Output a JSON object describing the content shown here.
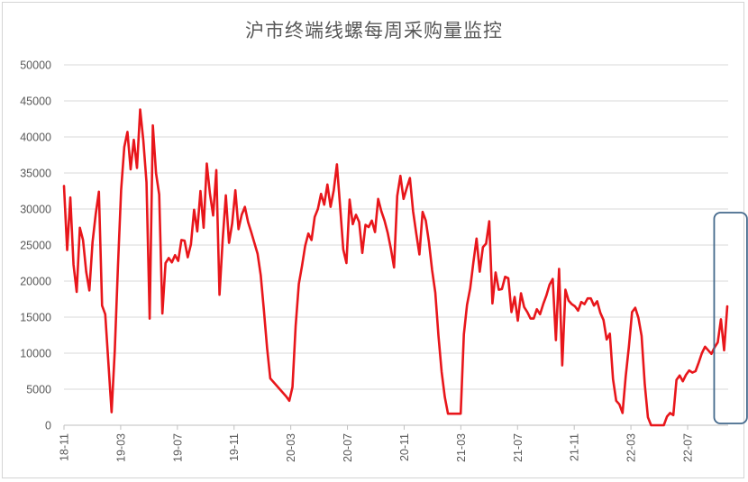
{
  "chart_data": {
    "type": "line",
    "title": "沪市终端线螺每周采购量监控",
    "xlabel": "",
    "ylabel": "",
    "ylim": [
      0,
      50000
    ],
    "yticks": [
      0,
      5000,
      10000,
      15000,
      20000,
      25000,
      30000,
      35000,
      40000,
      45000,
      50000
    ],
    "xticks": [
      "18-11",
      "19-03",
      "19-07",
      "19-11",
      "20-03",
      "20-07",
      "20-11",
      "21-03",
      "21-07",
      "21-11",
      "22-03",
      "22-07"
    ],
    "x_period": "weekly",
    "grid": true,
    "legend": "none",
    "colors": {
      "series": "#e8161b",
      "grid": "#d9d9d9",
      "highlight": "#44698c"
    },
    "highlight_box": {
      "x_range": [
        "22-09",
        "22-11"
      ],
      "y_range": [
        0,
        29500
      ]
    },
    "series": [
      {
        "values": [
          33200,
          24300,
          31600,
          22300,
          18500,
          27400,
          25700,
          21300,
          18700,
          25400,
          29300,
          32400,
          16600,
          15400,
          8600,
          1800,
          10300,
          22000,
          32600,
          38600,
          40700,
          35500,
          39600,
          35700,
          43800,
          39500,
          33700,
          14800,
          41600,
          35000,
          32000,
          15500,
          22500,
          23200,
          22600,
          23600,
          22800,
          25700,
          25600,
          23300,
          25100,
          29900,
          26900,
          32500,
          27400,
          36300,
          32100,
          29100,
          35400,
          18100,
          25700,
          31900,
          25300,
          28000,
          32600,
          27200,
          29200,
          30300,
          28200,
          26800,
          25300,
          23800,
          20800,
          15900,
          10700,
          6500,
          6000,
          5500,
          5000,
          4500,
          4000,
          3400,
          5300,
          13800,
          19600,
          22100,
          24900,
          26600,
          25700,
          28900,
          30000,
          32100,
          30600,
          33400,
          30300,
          32600,
          36200,
          30400,
          24400,
          22500,
          31300,
          27900,
          29200,
          28200,
          23900,
          27800,
          27500,
          28400,
          26800,
          31400,
          29700,
          28400,
          26700,
          24500,
          21900,
          31800,
          34600,
          31400,
          32900,
          34300,
          29700,
          26600,
          23700,
          29600,
          28400,
          25400,
          21500,
          18400,
          12400,
          7400,
          3900,
          1600,
          1600,
          1600,
          1600,
          1600,
          12600,
          16700,
          19000,
          22600,
          25900,
          21300,
          24700,
          25200,
          28300,
          16900,
          21200,
          18800,
          18900,
          20600,
          20400,
          15700,
          17800,
          14500,
          18300,
          16400,
          15700,
          14800,
          14800,
          16100,
          15400,
          16800,
          18000,
          19500,
          20300,
          11800,
          21700,
          8300,
          18800,
          17300,
          16800,
          16500,
          15900,
          17100,
          16800,
          17600,
          17600,
          16600,
          17200,
          15600,
          14600,
          11900,
          12700,
          6400,
          3400,
          2900,
          1700,
          6800,
          10900,
          15700,
          16300,
          14900,
          12400,
          5700,
          1100,
          0,
          0,
          0,
          0,
          0,
          1200,
          1700,
          1400,
          6300,
          6900,
          6100,
          7000,
          7600,
          7300,
          7500,
          8700,
          10000,
          10900,
          10400,
          9900,
          10800,
          11500,
          14700,
          10400,
          16500
        ]
      }
    ]
  }
}
